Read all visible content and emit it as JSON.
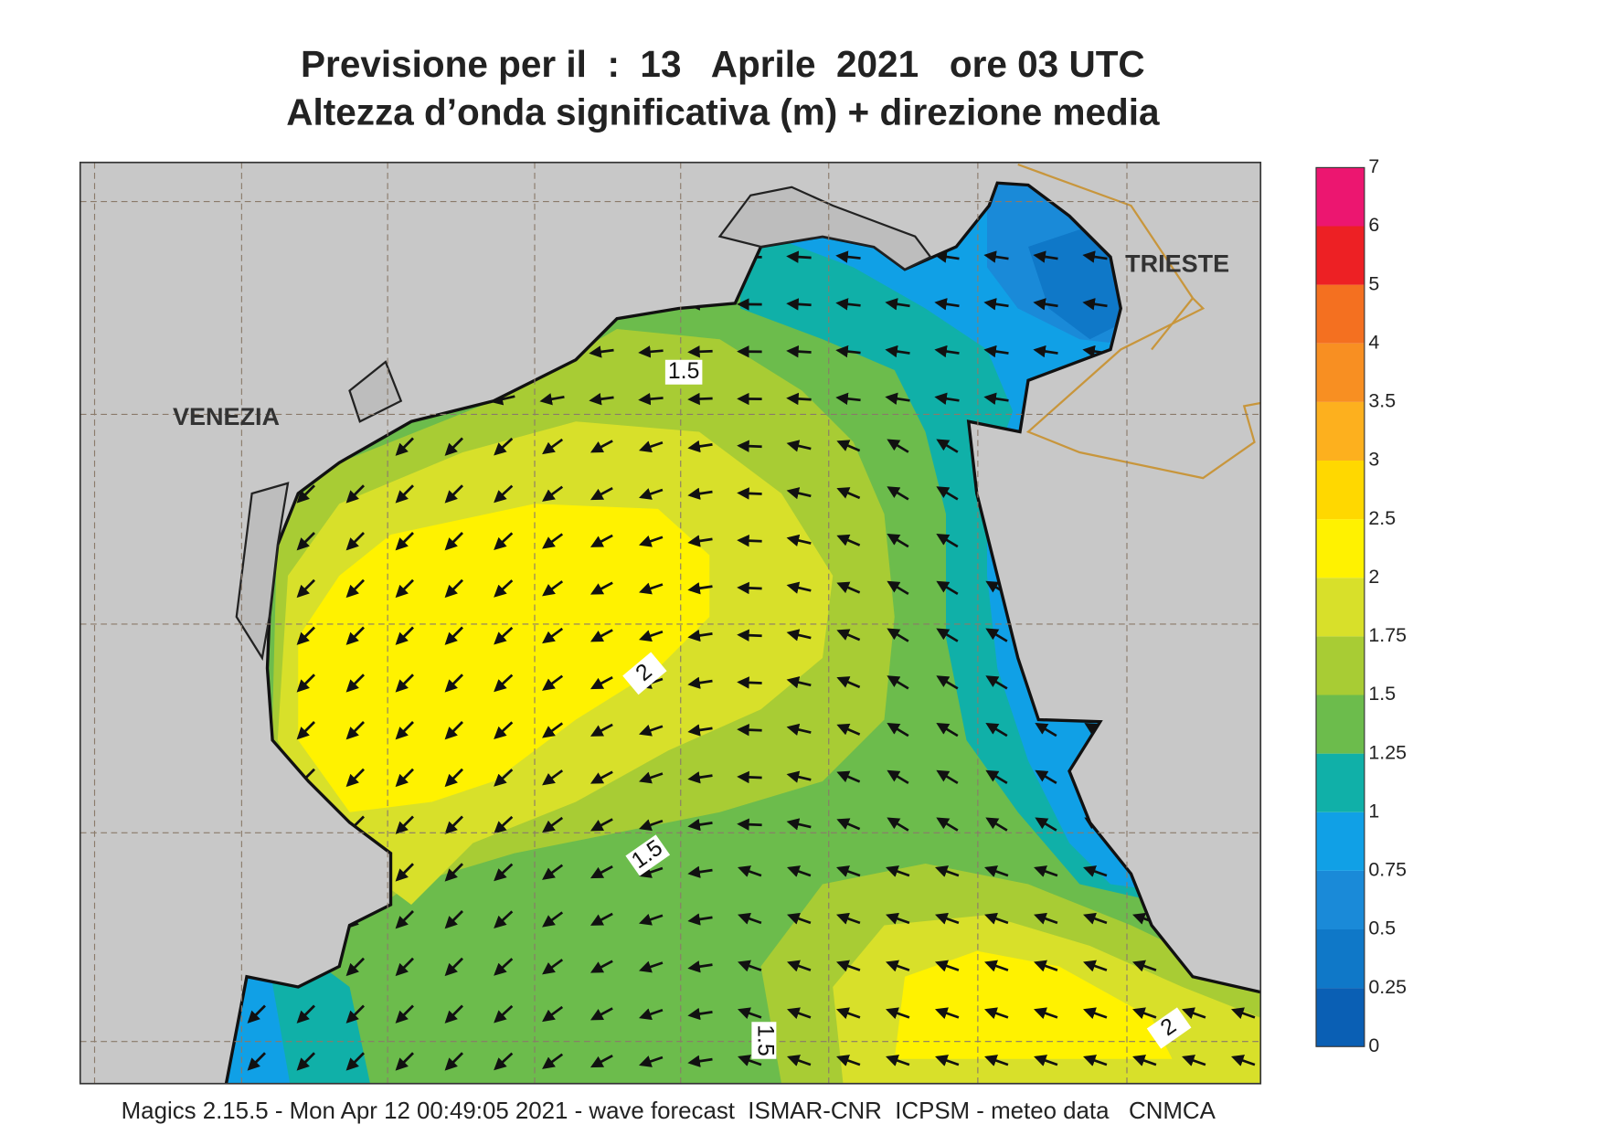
{
  "header": {
    "title": "Previsione per il  :  13   Aprile  2021   ore 03 UTC",
    "subtitle": "Altezza d’onda significativa (m) + direzione media"
  },
  "map": {
    "places": [
      "VENEZIA",
      "TRIESTE"
    ],
    "contour_labels": [
      "1.5",
      "2",
      "1.5",
      "1.5",
      "2"
    ]
  },
  "colorbar": {
    "levels": [
      0,
      0.25,
      0.5,
      0.75,
      1,
      1.25,
      1.5,
      1.75,
      2,
      2.5,
      3,
      3.5,
      4,
      5,
      6,
      7
    ],
    "colors": [
      "#0a5fb4",
      "#0f78c8",
      "#1a8ad8",
      "#10a0e6",
      "#10b0a8",
      "#6cbc4c",
      "#a8cc34",
      "#d8e02a",
      "#fff200",
      "#ffd800",
      "#fdb01e",
      "#f88f22",
      "#f47020",
      "#ed2024",
      "#ec1670"
    ]
  },
  "footer": "Magics 2.15.5 - Mon Apr 12 00:49:05 2021 - wave forecast  ISMAR-CNR  ICPSM - meteo data   CNMCA"
}
